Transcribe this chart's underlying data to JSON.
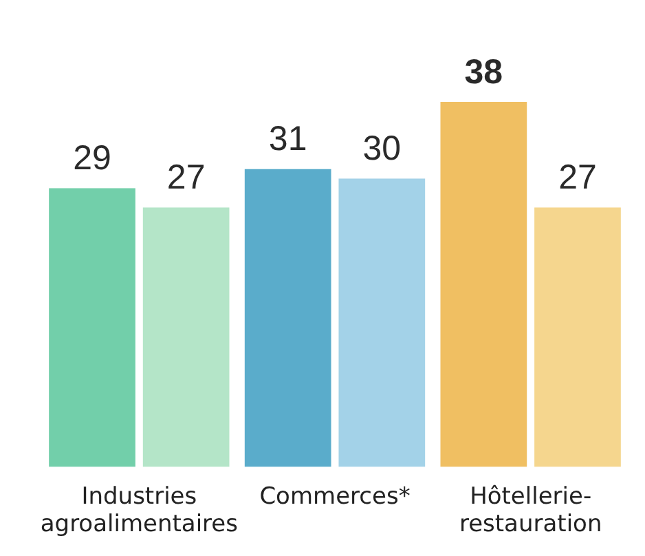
{
  "chart_data": {
    "type": "bar",
    "categories": [
      "Industries agroalimentaires",
      "Commerces*",
      "Hôtellerie-restauration"
    ],
    "series": [
      {
        "colors": [
          "#72cfaa",
          "#5aaccb",
          "#f0bf62"
        ],
        "values": [
          29,
          31,
          38
        ]
      },
      {
        "colors": [
          "#b4e5c8",
          "#a3d2e8",
          "#f5d68e"
        ],
        "values": [
          27,
          30,
          27
        ]
      }
    ],
    "data_labels": true,
    "grid": false,
    "legend": false
  }
}
